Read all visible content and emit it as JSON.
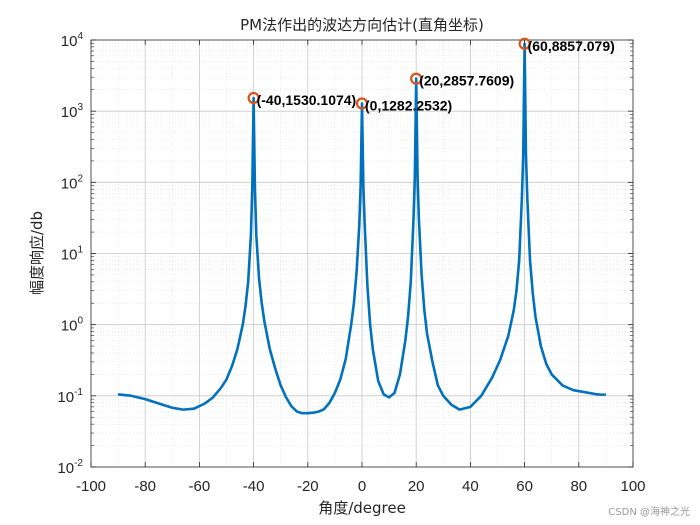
{
  "watermark": "CSDN @海神之光",
  "chart_data": {
    "type": "line",
    "title": "PM法作出的波达方向估计(直角坐标)",
    "xlabel": "角度/degree",
    "ylabel": "幅度响应/db",
    "xlim": [
      -100,
      100
    ],
    "ylim": [
      0.01,
      10000
    ],
    "yscale": "log",
    "grid": true,
    "minor_grid": true,
    "xticks": [
      -100,
      -80,
      -60,
      -40,
      -20,
      0,
      20,
      40,
      60,
      80,
      100
    ],
    "xtick_labels": [
      "-100",
      "-80",
      "-60",
      "-40",
      "-20",
      "0",
      "20",
      "40",
      "60",
      "80",
      "100"
    ],
    "ytick_exponents": [
      -2,
      -1,
      0,
      1,
      2,
      3,
      4
    ],
    "ytick_base": "10",
    "series": [
      {
        "color": "#0072bd",
        "x": [
          -90,
          -85,
          -80,
          -75,
          -70,
          -66,
          -62,
          -58,
          -55,
          -52,
          -50,
          -48,
          -46,
          -44,
          -43,
          -42,
          -41,
          -40.5,
          -40,
          -39.5,
          -39,
          -38,
          -37,
          -36,
          -34,
          -32,
          -30,
          -28,
          -26,
          -24,
          -22,
          -20,
          -18,
          -16,
          -14,
          -12,
          -10,
          -8,
          -6,
          -4,
          -3,
          -2,
          -1,
          -0.5,
          0,
          0.5,
          1,
          2,
          3,
          4,
          6,
          8,
          10,
          12,
          14,
          16,
          17,
          18,
          19,
          19.5,
          20,
          20.5,
          21,
          22,
          23,
          24,
          26,
          28,
          30,
          33,
          36,
          40,
          44,
          48,
          51,
          54,
          56,
          57,
          58,
          59,
          59.5,
          60,
          60.5,
          61,
          62,
          63,
          64,
          66,
          68,
          70,
          74,
          78,
          82,
          86,
          88,
          90
        ],
        "y": [
          0.105,
          0.1,
          0.09,
          0.078,
          0.068,
          0.064,
          0.066,
          0.078,
          0.095,
          0.13,
          0.17,
          0.26,
          0.45,
          1.0,
          1.8,
          4.0,
          18,
          80,
          1530.1074,
          80,
          18,
          4.5,
          2.0,
          1.1,
          0.45,
          0.24,
          0.14,
          0.095,
          0.071,
          0.06,
          0.057,
          0.057,
          0.058,
          0.06,
          0.065,
          0.08,
          0.11,
          0.17,
          0.33,
          1.0,
          2.0,
          5.5,
          25,
          90,
          1282.2532,
          90,
          25,
          3.5,
          1.0,
          0.45,
          0.16,
          0.105,
          0.095,
          0.11,
          0.2,
          0.6,
          1.3,
          4.0,
          30,
          120,
          2857.7609,
          120,
          30,
          5.0,
          1.6,
          0.75,
          0.3,
          0.14,
          0.1,
          0.075,
          0.064,
          0.07,
          0.1,
          0.18,
          0.32,
          0.7,
          1.6,
          3.0,
          8,
          60,
          250,
          8857.079,
          250,
          60,
          8,
          2.8,
          1.3,
          0.5,
          0.28,
          0.2,
          0.14,
          0.12,
          0.113,
          0.106,
          0.104,
          0.104
        ]
      }
    ],
    "annotations": [
      {
        "x": -40,
        "y": 1530.1074,
        "label": "(-40,1530.1074)",
        "marker": "circle",
        "color": "#d95319"
      },
      {
        "x": 0,
        "y": 1282.2532,
        "label": "(0,1282.2532)",
        "marker": "circle",
        "color": "#d95319"
      },
      {
        "x": 20,
        "y": 2857.7609,
        "label": "(20,2857.7609)",
        "marker": "circle",
        "color": "#d95319"
      },
      {
        "x": 60,
        "y": 8857.079,
        "label": "(60,8857.079)",
        "marker": "circle",
        "color": "#d95319"
      }
    ]
  }
}
